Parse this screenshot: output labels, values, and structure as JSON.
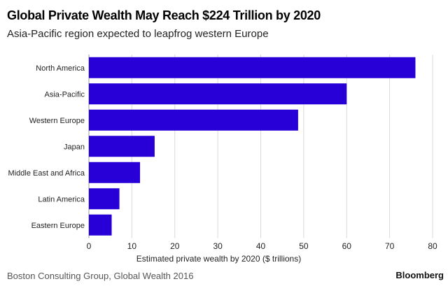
{
  "header": {
    "title": "Global Private Wealth May Reach $224 Trillion by 2020",
    "subtitle": "Asia-Pacific region expected to leapfrog western Europe"
  },
  "footer": {
    "source": "Boston Consulting Group, Global Wealth 2016",
    "brand": "Bloomberg"
  },
  "colors": {
    "bar": "#2800d7",
    "grid": "#d9d9d9",
    "text": "#222222"
  },
  "chart_data": {
    "type": "bar",
    "orientation": "horizontal",
    "title": "Global Private Wealth May Reach $224 Trillion by 2020",
    "subtitle": "Asia-Pacific region expected to leapfrog western Europe",
    "categories": [
      "North America",
      "Asia-Pacific",
      "Western Europe",
      "Japan",
      "Middle East and Africa",
      "Latin America",
      "Eastern Europe"
    ],
    "values": [
      76,
      60,
      48.7,
      15.3,
      11.9,
      7.1,
      5.3
    ],
    "xlabel": "Estimated private wealth by 2020 ($ trillions)",
    "ylabel": "",
    "xlim": [
      0,
      80
    ],
    "xticks": [
      0,
      10,
      20,
      30,
      40,
      50,
      60,
      70,
      80
    ],
    "grid": true,
    "legend": "none"
  }
}
